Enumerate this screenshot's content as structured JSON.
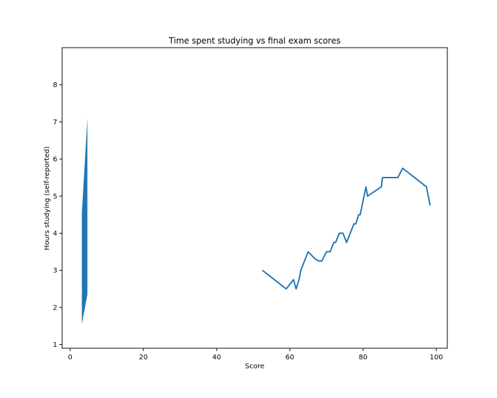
{
  "chart_data": {
    "type": "line",
    "title": "Time spent studying vs final exam scores",
    "xlabel": "Score",
    "ylabel": "Hours studying (self-reported)",
    "xlim": [
      -2.2,
      103.0
    ],
    "ylim": [
      0.9,
      9.0
    ],
    "xticks": [
      0,
      20,
      40,
      60,
      80,
      100
    ],
    "yticks": [
      1,
      2,
      3,
      4,
      5,
      6,
      7,
      8
    ],
    "grid": false,
    "legend": "none",
    "series": [
      {
        "type": "line",
        "color": "#1f77b4",
        "points": [
          [
            52.5,
            3.0
          ],
          [
            59.0,
            2.5
          ],
          [
            61.0,
            2.75
          ],
          [
            61.7,
            2.5
          ],
          [
            62.5,
            2.75
          ],
          [
            63.0,
            3.0
          ],
          [
            65.0,
            3.5
          ],
          [
            67.0,
            3.3
          ],
          [
            68.0,
            3.25
          ],
          [
            68.7,
            3.25
          ],
          [
            70.0,
            3.5
          ],
          [
            71.0,
            3.5
          ],
          [
            72.0,
            3.75
          ],
          [
            72.5,
            3.75
          ],
          [
            73.5,
            4.0
          ],
          [
            74.5,
            4.0
          ],
          [
            75.5,
            3.75
          ],
          [
            76.5,
            4.0
          ],
          [
            77.5,
            4.25
          ],
          [
            78.0,
            4.25
          ],
          [
            78.8,
            4.5
          ],
          [
            79.2,
            4.5
          ],
          [
            80.0,
            4.88
          ],
          [
            80.8,
            5.25
          ],
          [
            81.2,
            5.0
          ],
          [
            85.0,
            5.25
          ],
          [
            85.3,
            5.5
          ],
          [
            89.5,
            5.5
          ],
          [
            90.8,
            5.75
          ],
          [
            97.3,
            5.25
          ],
          [
            98.3,
            4.75
          ]
        ]
      },
      {
        "type": "area",
        "color": "#1f77b4",
        "x": [
          3.2,
          4.7
        ],
        "lower": [
          1.55,
          2.35
        ],
        "upper": [
          4.55,
          7.1
        ]
      }
    ]
  }
}
